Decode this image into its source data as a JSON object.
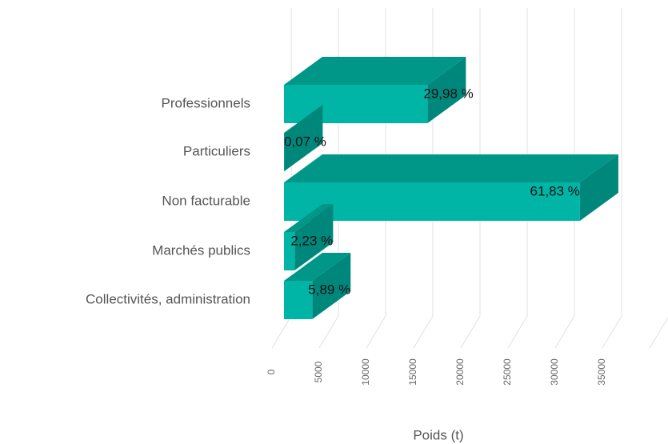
{
  "chart_data": {
    "type": "bar3d",
    "categories": [
      "Professionnels",
      "Particuliers",
      "Non facturable",
      "Marchés publics",
      "Collectivités, administration"
    ],
    "values": [
      15200,
      35,
      31350,
      1130,
      2990
    ],
    "value_labels": [
      "29,98 %",
      "0,07 %",
      "61,83 %",
      "2,23 %",
      "5,89 %"
    ],
    "color": "#00b5a5",
    "xlabel": "Poids (t)",
    "xlim": [
      0,
      40000
    ],
    "xticks": [
      0,
      5000,
      10000,
      15000,
      20000,
      25000,
      30000,
      35000
    ],
    "grid": true
  }
}
